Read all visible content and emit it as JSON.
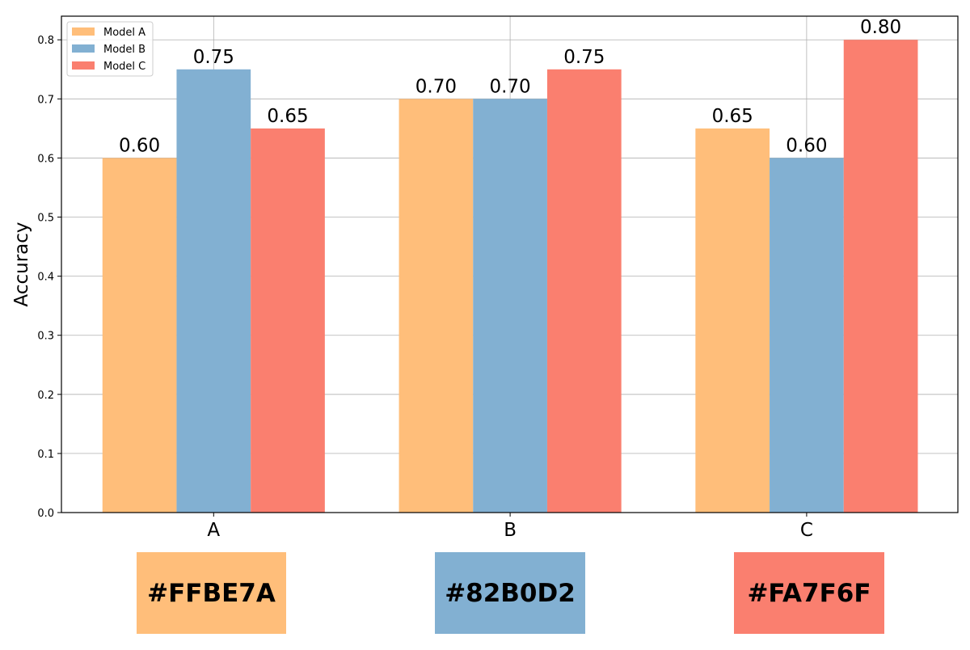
{
  "chart_data": {
    "type": "bar",
    "categories": [
      "A",
      "B",
      "C"
    ],
    "series": [
      {
        "name": "Model A",
        "color": "#FFBE7A",
        "values": [
          0.6,
          0.7,
          0.65
        ]
      },
      {
        "name": "Model B",
        "color": "#82B0D2",
        "values": [
          0.75,
          0.7,
          0.6
        ]
      },
      {
        "name": "Model C",
        "color": "#FA7F6F",
        "values": [
          0.65,
          0.75,
          0.8
        ]
      }
    ],
    "data_labels": [
      [
        "0.60",
        "0.70",
        "0.65"
      ],
      [
        "0.75",
        "0.70",
        "0.60"
      ],
      [
        "0.65",
        "0.75",
        "0.80"
      ]
    ],
    "ylabel": "Accuracy",
    "ylim": [
      0,
      0.84
    ],
    "yticks": [
      0.0,
      0.1,
      0.2,
      0.3,
      0.4,
      0.5,
      0.6,
      0.7,
      0.8
    ],
    "ytick_labels": [
      "0.0",
      "0.1",
      "0.2",
      "0.3",
      "0.4",
      "0.5",
      "0.6",
      "0.7",
      "0.8"
    ],
    "grid": true,
    "legend_position": "top-left"
  },
  "swatches": [
    {
      "label": "#FFBE7A",
      "color": "#FFBE7A"
    },
    {
      "label": "#82B0D2",
      "color": "#82B0D2"
    },
    {
      "label": "#FA7F6F",
      "color": "#FA7F6F"
    }
  ]
}
